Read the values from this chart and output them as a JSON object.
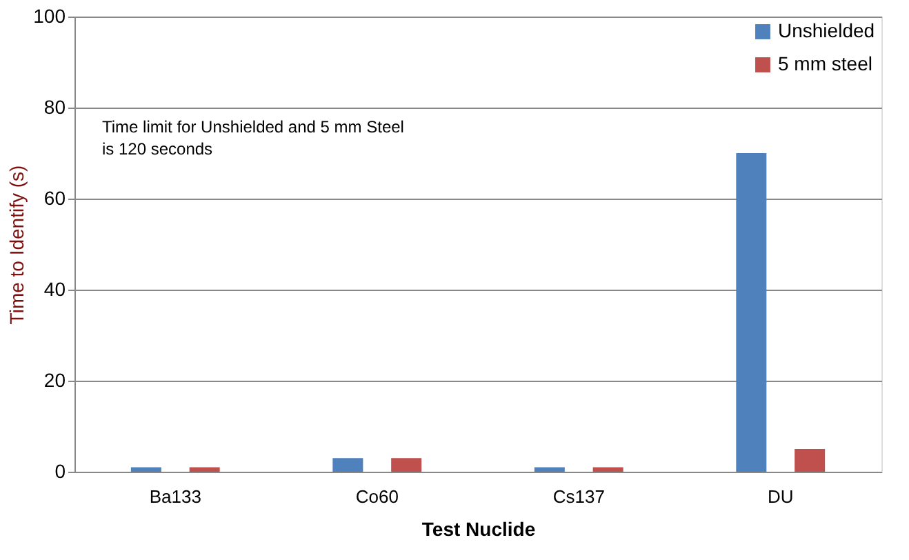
{
  "chart_data": {
    "type": "bar",
    "xlabel": "Test Nuclide",
    "ylabel": "Time to Identify (s)",
    "categories": [
      "Ba133",
      "Co60",
      "Cs137",
      "DU"
    ],
    "series": [
      {
        "name": "Unshielded",
        "color": "#4f81bd",
        "values": [
          1,
          3,
          1,
          70
        ]
      },
      {
        "name": "5 mm steel",
        "color": "#c0504d",
        "values": [
          1,
          3,
          1,
          5
        ]
      }
    ],
    "ylim": [
      0,
      100
    ],
    "yticks": [
      0,
      20,
      40,
      60,
      80,
      100
    ],
    "grid": "y",
    "legend": "top right",
    "annotations": [
      "Time limit for Unshielded and 5 mm Steel\nis 120 seconds"
    ]
  }
}
